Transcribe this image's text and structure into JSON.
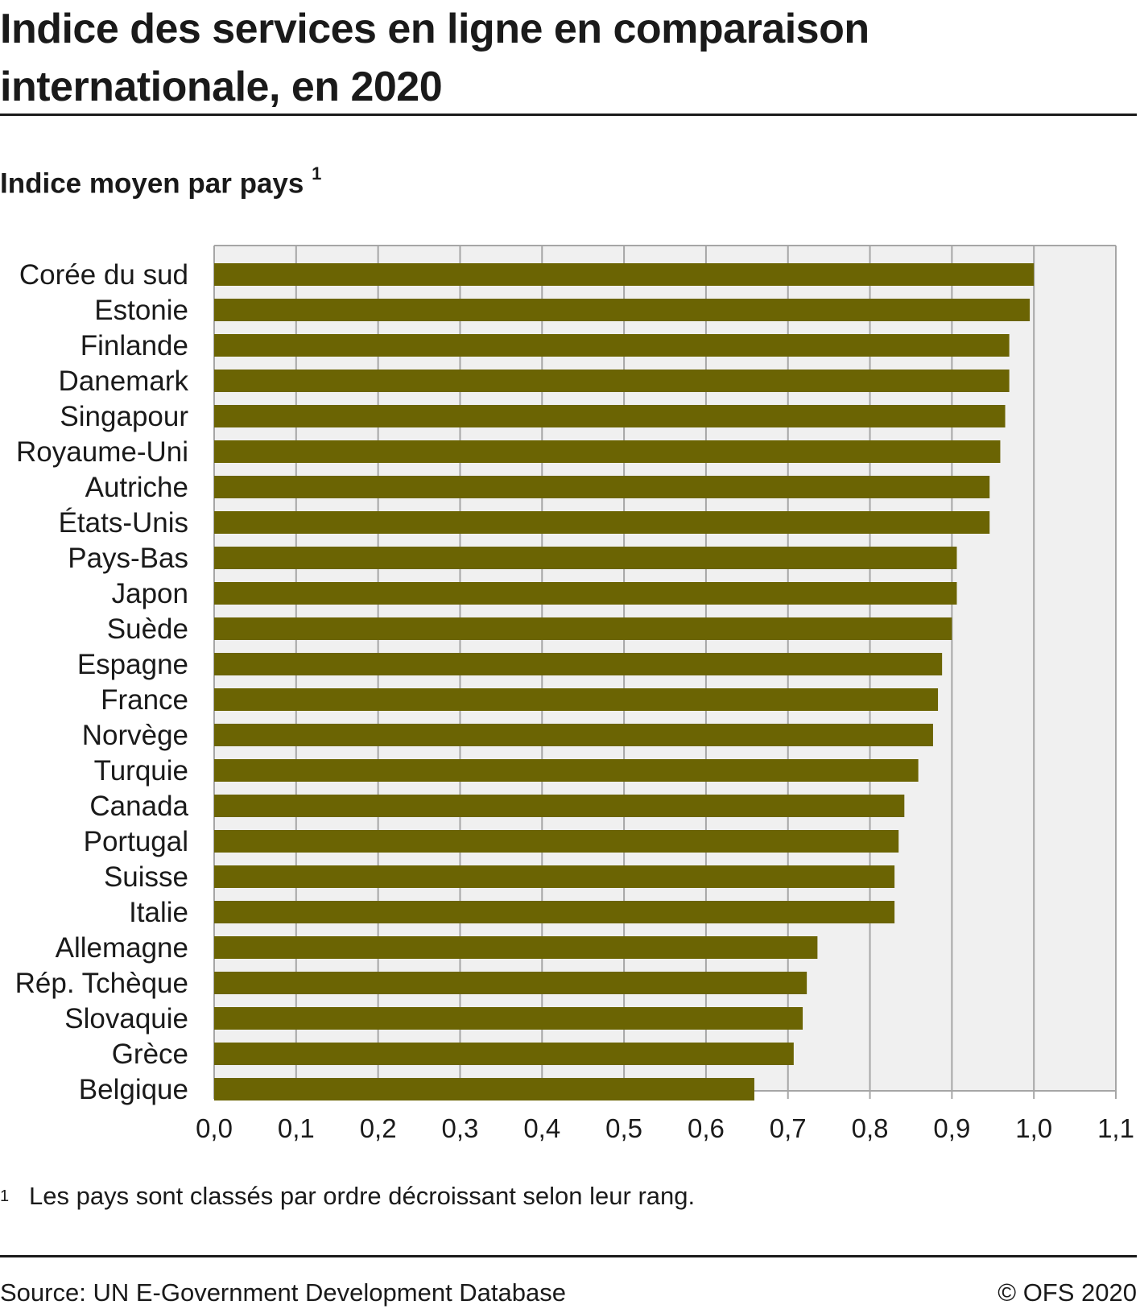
{
  "title_lines": [
    "Indice des services en ligne en comparaison",
    "internationale, en 2020"
  ],
  "subtitle": "Indice moyen par pays",
  "subtitle_note": "1",
  "footnote": {
    "mark": "1",
    "text": "Les pays sont classés par ordre décroissant selon leur rang."
  },
  "source": "Source: UN E-Government Development Database",
  "copyright": "© OFS 2020",
  "colors": {
    "bar": "#6b6403",
    "plot_background": "#f0f0f0",
    "grid": "#a6a6a6"
  },
  "chart_data": {
    "type": "bar",
    "orientation": "horizontal",
    "categories": [
      "Corée du sud",
      "Estonie",
      "Finlande",
      "Danemark",
      "Singapour",
      "Royaume-Uni",
      "Autriche",
      "États-Unis",
      "Pays-Bas",
      "Japon",
      "Suède",
      "Espagne",
      "France",
      "Norvège",
      "Turquie",
      "Canada",
      "Portugal",
      "Suisse",
      "Italie",
      "Allemagne",
      "Rép. Tchèque",
      "Slovaquie",
      "Grèce",
      "Belgique"
    ],
    "values": [
      1.0,
      0.995,
      0.97,
      0.97,
      0.965,
      0.959,
      0.946,
      0.946,
      0.906,
      0.906,
      0.9,
      0.888,
      0.883,
      0.877,
      0.859,
      0.842,
      0.835,
      0.83,
      0.83,
      0.736,
      0.723,
      0.718,
      0.707,
      0.659
    ],
    "xlim": [
      0,
      1.1
    ],
    "xticks": [
      "0,0",
      "0,1",
      "0,2",
      "0,3",
      "0,4",
      "0,5",
      "0,6",
      "0,7",
      "0,8",
      "0,9",
      "1,0",
      "1,1"
    ],
    "grid": true,
    "legend": "none"
  }
}
